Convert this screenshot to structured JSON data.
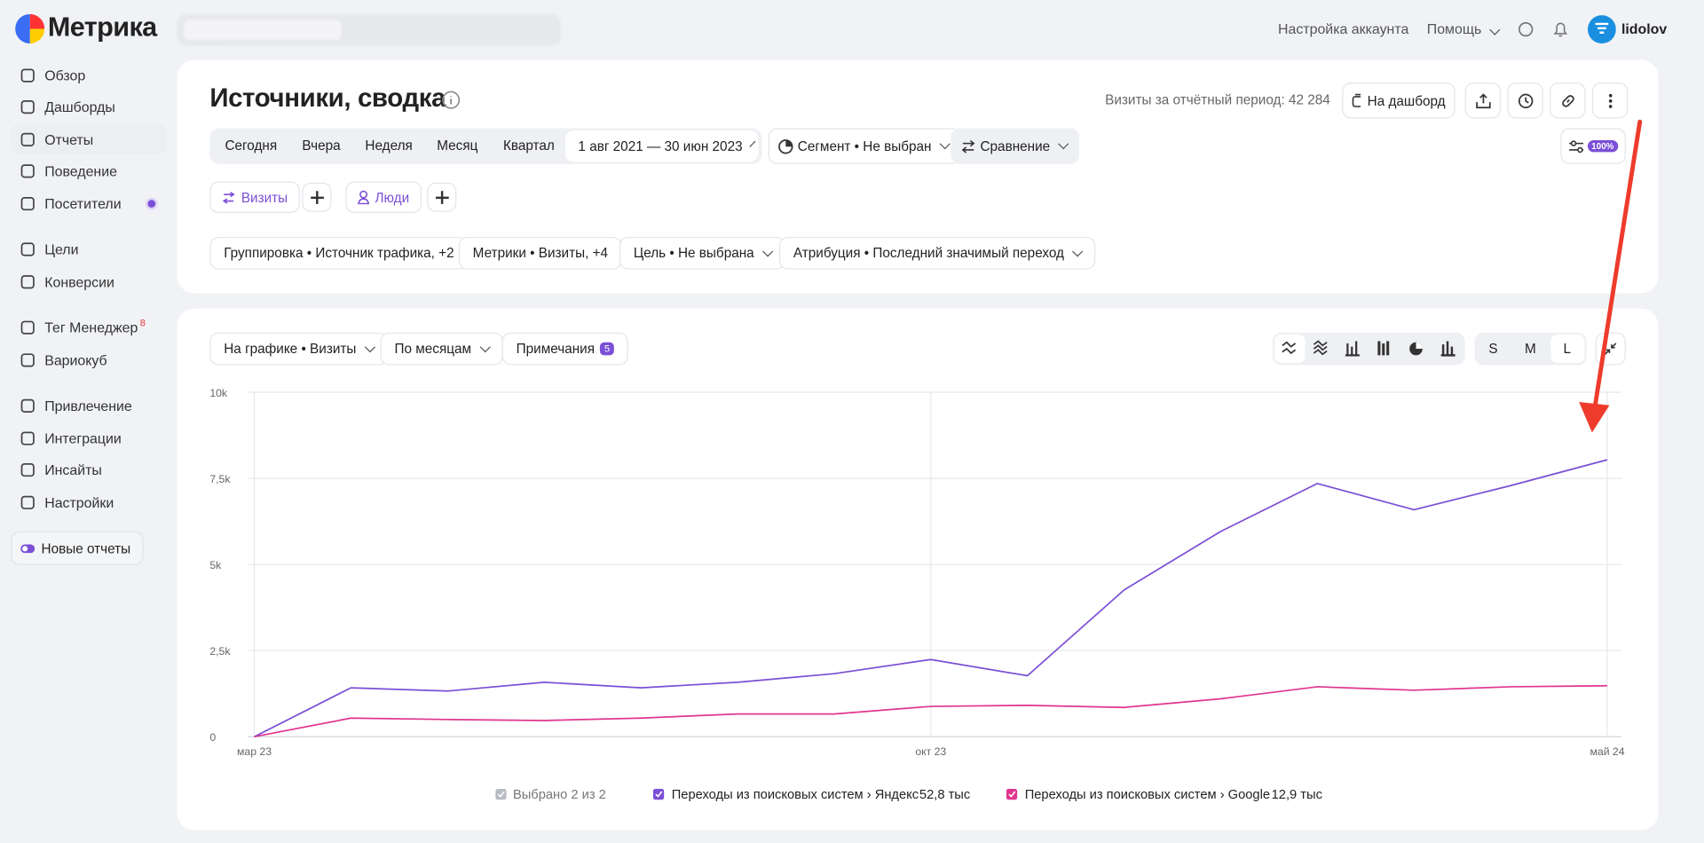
{
  "logo": "Метрика",
  "topbar": {
    "account": "Настройка аккаунта",
    "help": "Помощь",
    "user": "lidolov"
  },
  "sidebar": {
    "groups": [
      [
        "Обзор",
        "Дашборды",
        "Отчеты",
        "Поведение",
        "Посетители"
      ],
      [
        "Цели",
        "Конверсии"
      ],
      [
        "Тег Менеджер",
        "Вариокуб"
      ],
      [
        "Привлечение",
        "Интеграции",
        "Инсайты",
        "Настройки"
      ]
    ],
    "tag_badge": 8,
    "new_reports": "Новые отчеты"
  },
  "header": {
    "title": "Источники, сводка",
    "visits_label": "Визиты за отчётный период: 42 284",
    "dashboard_button": "На дашборд"
  },
  "filters": {
    "periods": [
      "Сегодня",
      "Вчера",
      "Неделя",
      "Месяц",
      "Квартал"
    ],
    "date_range": "1 авг 2021 — 30 июн 2023",
    "segment": "Сегмент • Не выбран",
    "comparison": "Сравнение",
    "zoom": "100%"
  },
  "tabs": [
    "Визиты",
    "Люди"
  ],
  "settings": [
    "Группировка • Источник трафика, +2",
    "Метрики • Визиты, +4",
    "Цель • Не выбрана",
    "Атрибуция • Последний значимый переход"
  ],
  "chart_controls": {
    "chart_metric": "На графике • Визиты",
    "grouping": "По месяцам",
    "notes": "Примечания",
    "notes_count": 5,
    "sizes": [
      "S",
      "M",
      "L"
    ]
  },
  "chart_data": {
    "type": "line",
    "categories": [
      "мар 23",
      null,
      null,
      null,
      null,
      null,
      null,
      "окт 23",
      null,
      null,
      null,
      null,
      null,
      null,
      "май 24"
    ],
    "series": [
      {
        "name": "Переходы из поисковых систем › Яндекс",
        "color": "#7b4fd6",
        "total_label": "52,8 тыс",
        "values": [
          0,
          1420,
          1325,
          1580,
          1420,
          1580,
          1830,
          2240,
          1770,
          4260,
          5960,
          7350,
          6590,
          7290,
          8040
        ]
      },
      {
        "name": "Переходы из поисковых систем › Google",
        "color": "#e0358f",
        "total_label": "12,9 тыс",
        "values": [
          0,
          540,
          500,
          470,
          540,
          660,
          660,
          880,
          910,
          850,
          1100,
          1450,
          1350,
          1450,
          1480
        ]
      }
    ],
    "ylim": [
      0,
      10000
    ],
    "yticks": [
      0,
      {
        "value": 2500,
        "label": "2,5k"
      },
      {
        "value": 5000,
        "label": "5k"
      },
      {
        "value": 7500,
        "label": "7,5k"
      },
      {
        "value": 10000,
        "label": "10k"
      }
    ],
    "grid": true,
    "legend_header": "Выбрано 2 из 2"
  }
}
